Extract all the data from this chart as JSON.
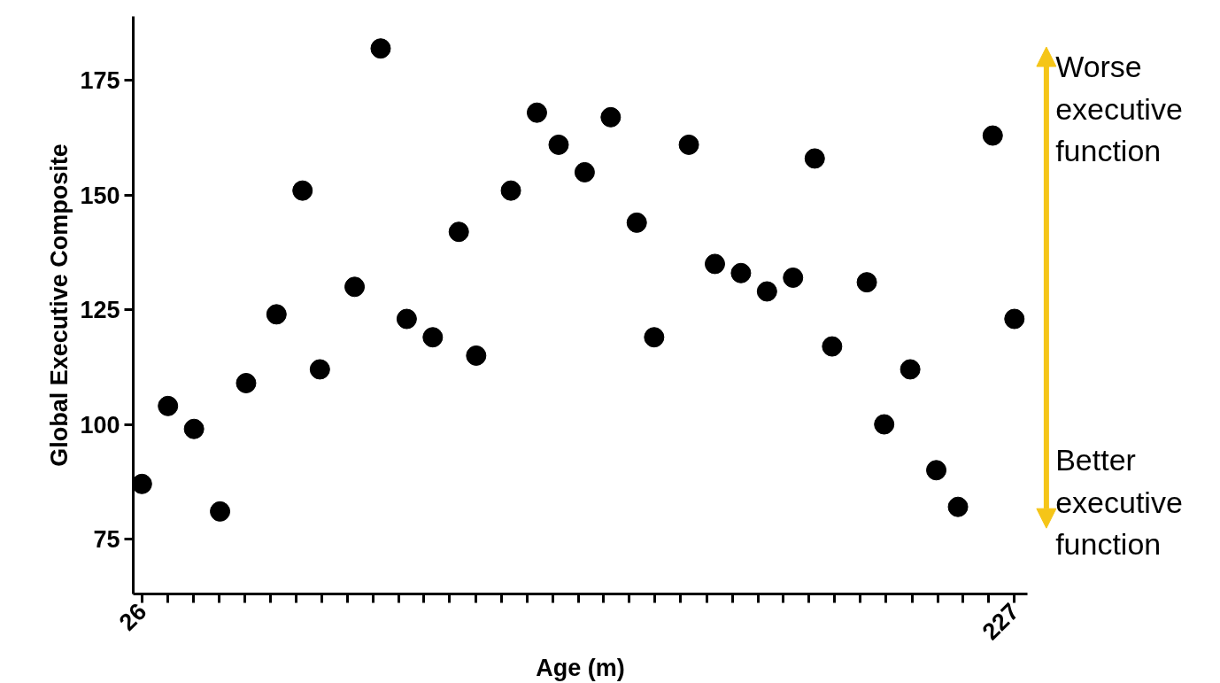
{
  "chart_data": {
    "type": "scatter",
    "xlabel": "Age (m)",
    "ylabel": "Global Executive Composite",
    "x": [
      26,
      32,
      38,
      44,
      50,
      57,
      63,
      67,
      75,
      81,
      87,
      93,
      99,
      103,
      111,
      117,
      122,
      128,
      134,
      140,
      144,
      152,
      158,
      164,
      170,
      176,
      181,
      185,
      193,
      197,
      203,
      209,
      214,
      222,
      227
    ],
    "series": [
      {
        "color": "#000000",
        "values": [
          87,
          104,
          99,
          81,
          109,
          124,
          151,
          112,
          130,
          182,
          123,
          119,
          142,
          115,
          151,
          168,
          161,
          155,
          167,
          144,
          119,
          161,
          135,
          133,
          129,
          132,
          158,
          117,
          131,
          100,
          112,
          90,
          82,
          163,
          123
        ]
      }
    ],
    "marker": "circle",
    "grid": false,
    "xlim": [
      24,
      230
    ],
    "ylim": [
      63,
      189
    ],
    "xticks": [
      26,
      {
        "value": 31.9,
        "label": null
      },
      {
        "value": 37.8,
        "label": null
      },
      {
        "value": 43.7,
        "label": null
      },
      {
        "value": 49.6,
        "label": null
      },
      {
        "value": 55.6,
        "label": null
      },
      {
        "value": 61.5,
        "label": null
      },
      {
        "value": 67.4,
        "label": null
      },
      {
        "value": 73.3,
        "label": null
      },
      {
        "value": 79.2,
        "label": null
      },
      {
        "value": 85.1,
        "label": null
      },
      {
        "value": 91.0,
        "label": null
      },
      {
        "value": 96.9,
        "label": null
      },
      {
        "value": 102.9,
        "label": null
      },
      {
        "value": 108.8,
        "label": null
      },
      {
        "value": 114.7,
        "label": null
      },
      {
        "value": 120.6,
        "label": null
      },
      {
        "value": 126.5,
        "label": null
      },
      {
        "value": 132.4,
        "label": null
      },
      {
        "value": 138.3,
        "label": null
      },
      {
        "value": 144.2,
        "label": null
      },
      {
        "value": 150.1,
        "label": null
      },
      {
        "value": 156.1,
        "label": null
      },
      {
        "value": 162.0,
        "label": null
      },
      {
        "value": 167.9,
        "label": null
      },
      {
        "value": 173.8,
        "label": null
      },
      {
        "value": 179.7,
        "label": null
      },
      {
        "value": 185.6,
        "label": null
      },
      {
        "value": 191.5,
        "label": null
      },
      {
        "value": 197.4,
        "label": null
      },
      {
        "value": 203.4,
        "label": null
      },
      {
        "value": 209.3,
        "label": null
      },
      {
        "value": 215.2,
        "label": null
      },
      {
        "value": 221.1,
        "label": null
      },
      227
    ],
    "yticks": [
      75,
      100,
      125,
      150,
      175
    ],
    "annotations": [
      "Worse\nexecutive\nfunction",
      "Better\nexecutive\nfunction"
    ]
  }
}
